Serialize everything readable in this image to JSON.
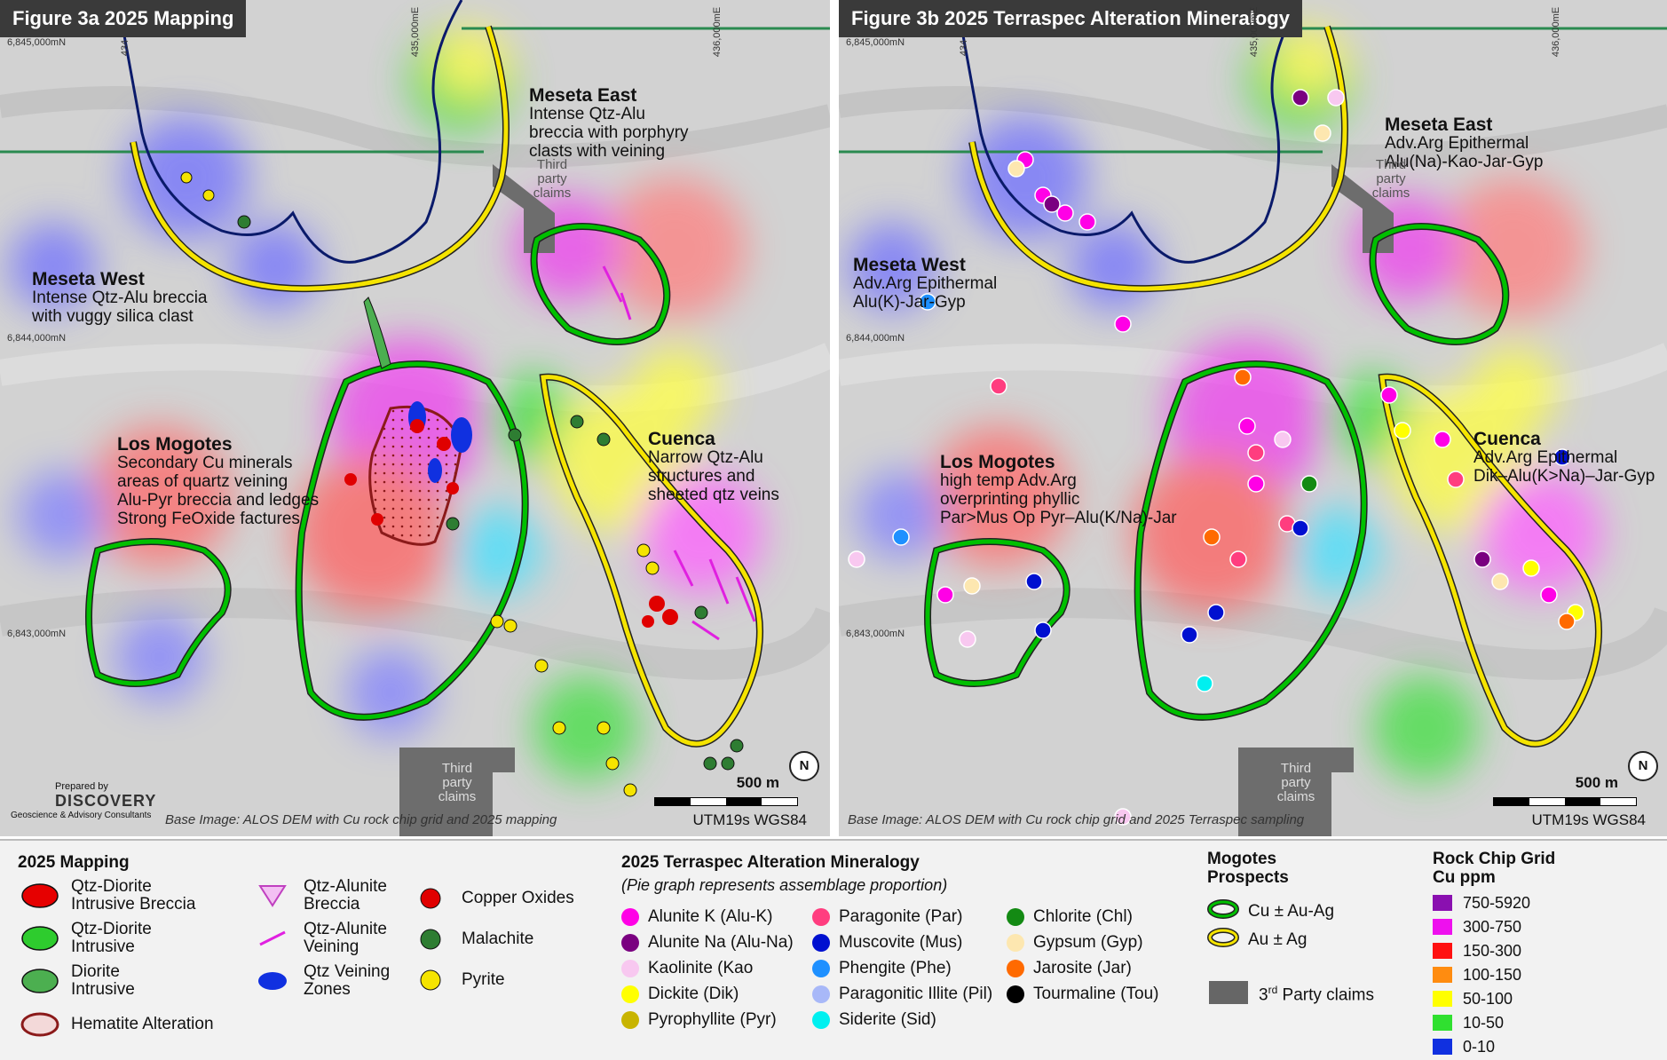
{
  "map_a": {
    "title": "Figure 3a 2025 Mapping",
    "labels": {
      "meseta_east": {
        "title": "Meseta East",
        "lines": "Intense Qtz-Alu\nbreccia with porphyry\nclasts with veining"
      },
      "meseta_west": {
        "title": "Meseta West",
        "lines": "Intense Qtz-Alu breccia\nwith vuggy silica clast"
      },
      "los_mogotes": {
        "title": "Los Mogotes",
        "lines": "Secondary Cu minerals\nareas of quartz veining\nAlu-Pyr breccia and ledges\nStrong FeOxide factures"
      },
      "cuenca": {
        "title": "Cuenca",
        "lines": "Narrow Qtz-Alu\nstructures and\nsheeted qtz veins"
      }
    },
    "third_party_top": "Third\nparty\nclaims",
    "third_party_bottom": "Third\nparty\nclaims",
    "grid_n1": "6,845,000mN",
    "grid_n2": "6,844,000mN",
    "grid_n3": "6,843,000mN",
    "grid_e1": "434",
    "grid_e2": "435,000mE",
    "grid_e3": "436,000mE",
    "credit": "Base Image: ALOS DEM with Cu rock chip grid and 2025 mapping",
    "scale": "500 m",
    "utm": "UTM19s WGS84",
    "north": "N",
    "logo_prepared": "Prepared by",
    "logo_name": "DISCOVERY",
    "logo_sub": "Geoscience & Advisory Consultants"
  },
  "map_b": {
    "title": "Figure 3b 2025 Terraspec Alteration Mineralogy",
    "labels": {
      "meseta_east": {
        "title": "Meseta East",
        "lines": "Adv.Arg Epithermal\nAlu(Na)-Kao-Jar-Gyp"
      },
      "meseta_west": {
        "title": "Meseta West",
        "lines": "Adv.Arg Epithermal\nAlu(K)-Jar-Gyp"
      },
      "los_mogotes": {
        "title": "Los Mogotes",
        "lines": "high temp Adv.Arg\noverprinting phyllic\nPar>Mus Op Pyr–Alu(K/Na)-Jar"
      },
      "cuenca": {
        "title": "Cuenca",
        "lines": "Adv.Arg Epithermal\nDik–Alu(K>Na)–Jar-Gyp"
      }
    },
    "third_party_top": "Third\nparty\nclaims",
    "third_party_bottom": "Third\nparty\nclaims",
    "grid_n1": "6,845,000mN",
    "grid_n2": "6,844,000mN",
    "grid_n3": "6,843,000mN",
    "grid_e1": "434",
    "grid_e2": "435,000mE",
    "grid_e3": "436,000mE",
    "credit": "Base Image: ALOS DEM with Cu rock chip grid and 2025 Terraspec sampling",
    "scale": "500 m",
    "utm": "UTM19s WGS84",
    "north": "N"
  },
  "legend": {
    "mapping": {
      "heading": "2025 Mapping",
      "items": [
        {
          "label": "Qtz-Diorite\nIntrusive Breccia",
          "color": "#e60000"
        },
        {
          "label": "Qtz-Diorite\nIntrusive",
          "color": "#2ecc2e"
        },
        {
          "label": "Diorite\nIntrusive",
          "color": "#4caf50"
        },
        {
          "label": "Hematite Alteration",
          "color": "#8b1a1a"
        },
        {
          "label": "Qtz-Alunite\nBreccia",
          "color": "#c040c0"
        },
        {
          "label": "Qtz-Alunite\nVeining",
          "color": "#e020e0"
        },
        {
          "label": "Qtz Veining\nZones",
          "color": "#1030e0"
        },
        {
          "label": "Copper Oxides",
          "color": "#e00000"
        },
        {
          "label": "Malachite",
          "color": "#2e7d32"
        },
        {
          "label": "Pyrite",
          "color": "#f5e400"
        }
      ]
    },
    "terraspec": {
      "heading": "2025 Terraspec Alteration Mineralogy",
      "subheading": "(Pie graph represents assemblage proportion)",
      "items": [
        {
          "label": "Alunite K (Alu-K)",
          "color": "#ff00e6"
        },
        {
          "label": "Alunite Na (Alu-Na)",
          "color": "#7a0080"
        },
        {
          "label": "Kaolinite (Kao",
          "color": "#f8c8f0"
        },
        {
          "label": "Dickite (Dik)",
          "color": "#ffff00"
        },
        {
          "label": "Pyrophyllite (Pyr)",
          "color": "#c8b400"
        },
        {
          "label": "Paragonite (Par)",
          "color": "#ff3d7f"
        },
        {
          "label": "Muscovite (Mus)",
          "color": "#0010d0"
        },
        {
          "label": "Phengite (Phe)",
          "color": "#1e90ff"
        },
        {
          "label": "Paragonitic Illite (Pil)",
          "color": "#a8b8f8"
        },
        {
          "label": "Siderite (Sid)",
          "color": "#00f0f0"
        },
        {
          "label": "Chlorite (Chl)",
          "color": "#138a13"
        },
        {
          "label": "Gypsum (Gyp)",
          "color": "#fde7b0"
        },
        {
          "label": "Jarosite (Jar)",
          "color": "#ff6a00"
        },
        {
          "label": "Tourmaline (Tou)",
          "color": "#000000"
        }
      ]
    },
    "prospects": {
      "heading": "Mogotes\nProspects",
      "items": [
        {
          "label": "Cu ± Au-Ag",
          "color": "#00c000"
        },
        {
          "label": "Au ± Ag",
          "color": "#f5e400"
        }
      ],
      "claims_label": "3",
      "claims_sup": "rd",
      "claims_rest": " Party claims",
      "claims_color": "#666666"
    },
    "grid": {
      "heading": "Rock Chip Grid\nCu ppm",
      "items": [
        {
          "label": "750-5920",
          "color": "#8a10b0"
        },
        {
          "label": "300-750",
          "color": "#ee10ee"
        },
        {
          "label": "150-300",
          "color": "#ff1010"
        },
        {
          "label": "100-150",
          "color": "#ff8c10"
        },
        {
          "label": "50-100",
          "color": "#ffff00"
        },
        {
          "label": "10-50",
          "color": "#30e030"
        },
        {
          "label": "0-10",
          "color": "#1030e0"
        }
      ]
    }
  }
}
